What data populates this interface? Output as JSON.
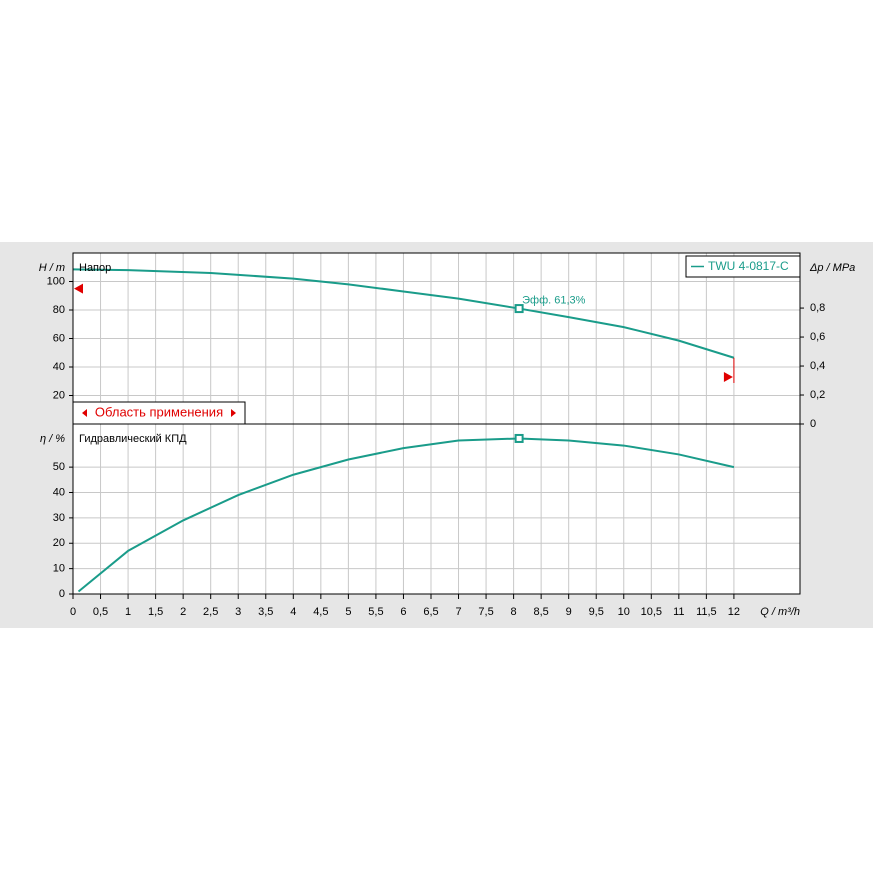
{
  "chart_data": [
    {
      "type": "line",
      "title": "Напор",
      "ylabel": "H / m",
      "y2label": "Δp / MPa",
      "x": [
        0,
        1,
        2.5,
        4,
        5,
        6,
        7,
        8.1,
        9,
        10,
        11,
        12
      ],
      "series": [
        {
          "name": "TWU 4-0817-C",
          "color": "#1a9c8a",
          "values": [
            108.5,
            108,
            106,
            102,
            98,
            93,
            88,
            81,
            75,
            68,
            58.5,
            46.5
          ]
        }
      ],
      "xlim": [
        0,
        13.2
      ],
      "ylim": [
        0,
        120
      ],
      "yticks": [
        20,
        40,
        60,
        80,
        100
      ],
      "y2lim": [
        0,
        1.18
      ],
      "y2ticks": [
        0,
        {
          "value": 0.2,
          "label": "0,2"
        },
        {
          "value": 0.4,
          "label": "0,4"
        },
        {
          "value": 0.6,
          "label": "0,6"
        },
        {
          "value": 0.8,
          "label": "0,8"
        }
      ],
      "operating_point": {
        "x": 8.1,
        "y": 81
      },
      "annotation": "Эфф.  61,3%",
      "limit_markers": [
        {
          "x": 0,
          "y": 95,
          "color": "#e00000"
        },
        {
          "x": 12,
          "y": 33,
          "color": "#e00000"
        }
      ],
      "range_label": "Область применения",
      "grid": true
    },
    {
      "type": "line",
      "title": "Гидравлический КПД",
      "ylabel": "η / %",
      "xlabel": "Q / m³/h",
      "x": [
        0.1,
        1,
        2,
        3,
        4,
        5,
        6,
        7,
        8.1,
        9,
        10,
        11,
        12
      ],
      "series": [
        {
          "name": "TWU 4-0817-C",
          "color": "#1a9c8a",
          "values": [
            1,
            17,
            29,
            39,
            47,
            53,
            57.5,
            60.5,
            61.3,
            60.5,
            58.5,
            55,
            50
          ]
        }
      ],
      "xlim": [
        0,
        13.2
      ],
      "ylim": [
        0,
        67
      ],
      "yticks": [
        0,
        10,
        20,
        30,
        40,
        50
      ],
      "xticks": [
        0,
        {
          "value": 0.5,
          "label": "0,5"
        },
        1,
        {
          "value": 1.5,
          "label": "1,5"
        },
        2,
        {
          "value": 2.5,
          "label": "2,5"
        },
        3,
        {
          "value": 3.5,
          "label": "3,5"
        },
        4,
        {
          "value": 4.5,
          "label": "4,5"
        },
        5,
        {
          "value": 5.5,
          "label": "5,5"
        },
        6,
        {
          "value": 6.5,
          "label": "6,5"
        },
        7,
        {
          "value": 7.5,
          "label": "7,5"
        },
        8,
        {
          "value": 8.5,
          "label": "8,5"
        },
        9,
        {
          "value": 9.5,
          "label": "9,5"
        },
        10,
        {
          "value": 10.5,
          "label": "10,5"
        },
        11,
        {
          "value": 11.5,
          "label": "11,5"
        },
        12
      ],
      "operating_point": {
        "x": 8.1,
        "y": 61.3
      },
      "grid": true
    }
  ]
}
